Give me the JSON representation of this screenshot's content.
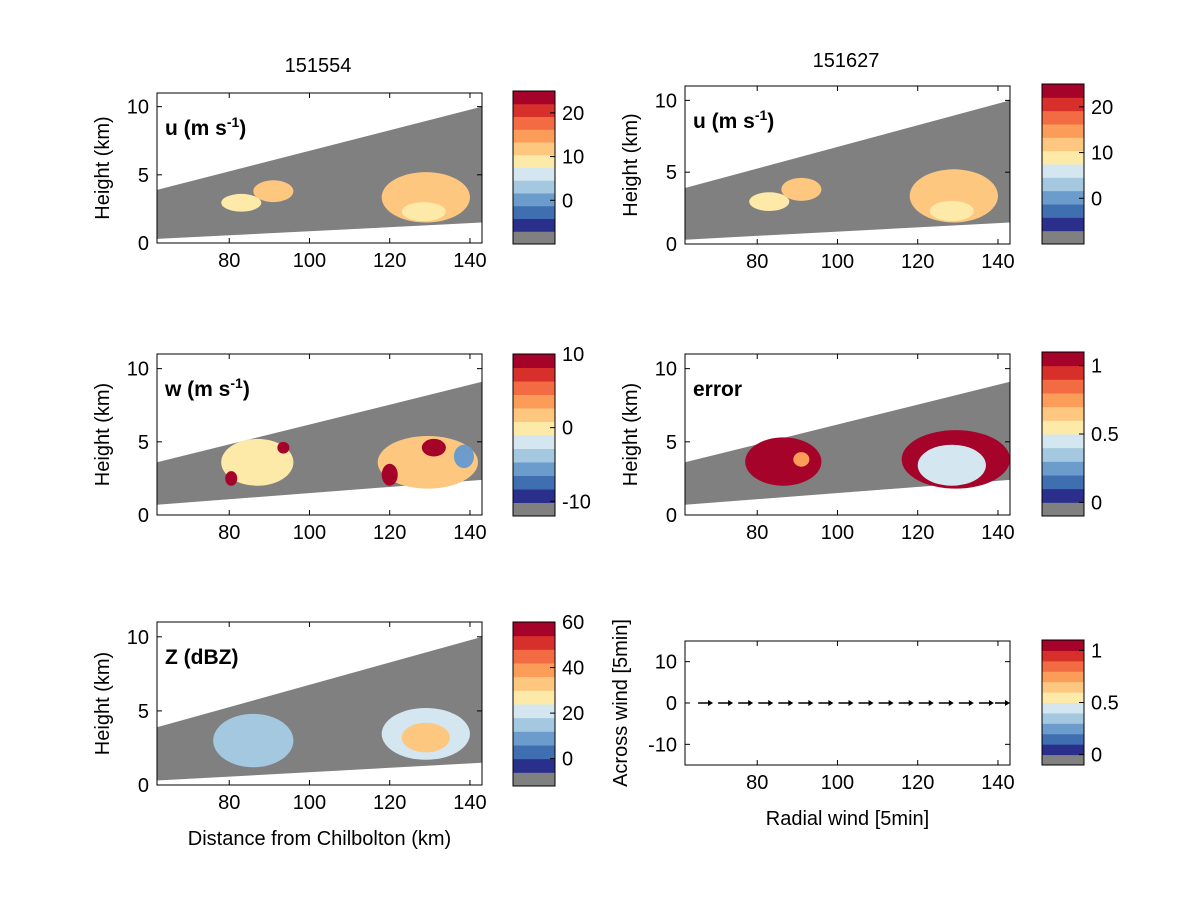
{
  "figure": {
    "col_titles": [
      "151554",
      "151627"
    ]
  },
  "colormap": [
    "#808080",
    "#2b2f8c",
    "#3f6fb0",
    "#6b9ccb",
    "#a3c8e0",
    "#d4e6f0",
    "#fde9a8",
    "#fdc780",
    "#fb9c59",
    "#f26b43",
    "#d7302b",
    "#a6032b"
  ],
  "chart_data": [
    {
      "id": "u-151554",
      "type": "heatmap",
      "title": "151554",
      "panel_label": "u (m s",
      "panel_label_sup": "-1",
      "panel_label_end": ")",
      "xlabel": "",
      "ylabel": "Height (km)",
      "xlim": [
        62,
        143
      ],
      "ylim": [
        0,
        11
      ],
      "xticks": [
        80,
        100,
        120,
        140
      ],
      "yticks": [
        0,
        5,
        10
      ],
      "beam_top": [
        [
          62,
          3.9
        ],
        [
          143,
          10.0
        ]
      ],
      "beam_bottom": [
        [
          62,
          0.3
        ],
        [
          143,
          1.5
        ]
      ],
      "colorbar": {
        "ticks": [
          0,
          10,
          20
        ],
        "range": [
          -10,
          25
        ]
      },
      "cells": [
        {
          "x": [
            78,
            88
          ],
          "y": [
            2.3,
            3.6
          ],
          "v": 7
        },
        {
          "x": [
            86,
            96
          ],
          "y": [
            3.0,
            4.6
          ],
          "v": 12
        },
        {
          "x": [
            118,
            140
          ],
          "y": [
            1.5,
            5.2
          ],
          "v": 12
        },
        {
          "x": [
            123,
            134
          ],
          "y": [
            1.6,
            3.0
          ],
          "v": 6
        }
      ]
    },
    {
      "id": "u-151627",
      "type": "heatmap",
      "title": "151627",
      "panel_label": "u (m s",
      "panel_label_sup": "-1",
      "panel_label_end": ")",
      "xlabel": "",
      "ylabel": "Height (km)",
      "xlim": [
        62,
        143
      ],
      "ylim": [
        0,
        11
      ],
      "xticks": [
        80,
        100,
        120,
        140
      ],
      "yticks": [
        0,
        5,
        10
      ],
      "beam_top": [
        [
          62,
          3.9
        ],
        [
          143,
          10.0
        ]
      ],
      "beam_bottom": [
        [
          62,
          0.3
        ],
        [
          143,
          1.5
        ]
      ],
      "colorbar": {
        "ticks": [
          0,
          10,
          20
        ],
        "range": [
          -10,
          25
        ]
      },
      "cells": [
        {
          "x": [
            78,
            88
          ],
          "y": [
            2.3,
            3.6
          ],
          "v": 7
        },
        {
          "x": [
            86,
            96
          ],
          "y": [
            3.0,
            4.6
          ],
          "v": 12
        },
        {
          "x": [
            118,
            140
          ],
          "y": [
            1.5,
            5.2
          ],
          "v": 12
        },
        {
          "x": [
            123,
            134
          ],
          "y": [
            1.6,
            3.0
          ],
          "v": 6
        }
      ]
    },
    {
      "id": "w-151554",
      "type": "heatmap",
      "panel_label": "w (m s",
      "panel_label_sup": "-1",
      "panel_label_end": ")",
      "xlabel": "",
      "ylabel": "Height (km)",
      "xlim": [
        62,
        143
      ],
      "ylim": [
        0,
        11
      ],
      "xticks": [
        80,
        100,
        120,
        140
      ],
      "yticks": [
        0,
        5,
        10
      ],
      "beam_top": [
        [
          62,
          3.6
        ],
        [
          143,
          9.1
        ]
      ],
      "beam_bottom": [
        [
          62,
          0.7
        ],
        [
          143,
          2.4
        ]
      ],
      "colorbar": {
        "ticks": [
          -10,
          0,
          10
        ],
        "range": [
          -12,
          10
        ]
      },
      "cells": [
        {
          "x": [
            78,
            96
          ],
          "y": [
            2.0,
            5.2
          ],
          "v": -2
        },
        {
          "x": [
            79,
            82
          ],
          "y": [
            2.0,
            3.0
          ],
          "v": 8
        },
        {
          "x": [
            92,
            95
          ],
          "y": [
            4.2,
            5.0
          ],
          "v": 9
        },
        {
          "x": [
            117,
            142
          ],
          "y": [
            1.8,
            5.4
          ],
          "v": 0
        },
        {
          "x": [
            118,
            122
          ],
          "y": [
            2.0,
            3.5
          ],
          "v": 8
        },
        {
          "x": [
            128,
            134
          ],
          "y": [
            4.0,
            5.2
          ],
          "v": 9
        },
        {
          "x": [
            136,
            141
          ],
          "y": [
            3.2,
            4.8
          ],
          "v": -8
        }
      ]
    },
    {
      "id": "error-151627",
      "type": "heatmap",
      "panel_label": "error",
      "xlabel": "",
      "ylabel": "Height (km)",
      "xlim": [
        62,
        143
      ],
      "ylim": [
        0,
        11
      ],
      "xticks": [
        80,
        100,
        120,
        140
      ],
      "yticks": [
        0,
        5,
        10
      ],
      "beam_top": [
        [
          62,
          3.6
        ],
        [
          143,
          9.1
        ]
      ],
      "beam_bottom": [
        [
          62,
          0.7
        ],
        [
          143,
          2.4
        ]
      ],
      "colorbar": {
        "ticks": [
          "0",
          "0.5",
          "1"
        ],
        "range": [
          -0.1,
          1.1
        ]
      },
      "cells": [
        {
          "x": [
            77,
            96
          ],
          "y": [
            2.0,
            5.3
          ],
          "v": 1.05
        },
        {
          "x": [
            89,
            93
          ],
          "y": [
            3.3,
            4.3
          ],
          "v": 0.7
        },
        {
          "x": [
            116,
            143
          ],
          "y": [
            1.8,
            5.8
          ],
          "v": 1.05
        },
        {
          "x": [
            120,
            137
          ],
          "y": [
            2.0,
            4.8
          ],
          "v": 0.35
        }
      ]
    },
    {
      "id": "Z-151554",
      "type": "heatmap",
      "panel_label": "Z (dBZ)",
      "xlabel": "Distance from Chilbolton (km)",
      "ylabel": "Height (km)",
      "xlim": [
        62,
        143
      ],
      "ylim": [
        0,
        11
      ],
      "xticks": [
        80,
        100,
        120,
        140
      ],
      "yticks": [
        0,
        5,
        10
      ],
      "beam_top": [
        [
          62,
          3.9
        ],
        [
          143,
          10.0
        ]
      ],
      "beam_bottom": [
        [
          62,
          0.3
        ],
        [
          143,
          1.5
        ]
      ],
      "colorbar": {
        "ticks": [
          0,
          20,
          40,
          60
        ],
        "range": [
          -12,
          60
        ]
      },
      "cells": [
        {
          "x": [
            76,
            96
          ],
          "y": [
            1.2,
            4.8
          ],
          "v": 10
        },
        {
          "x": [
            118,
            140
          ],
          "y": [
            1.7,
            5.2
          ],
          "v": 15
        },
        {
          "x": [
            123,
            135
          ],
          "y": [
            2.2,
            4.2
          ],
          "v": 28
        }
      ]
    },
    {
      "id": "wind-151627",
      "type": "scatter",
      "xlabel": "Radial wind [5min]",
      "ylabel": "Across wind [5min]",
      "xlim": [
        62,
        143
      ],
      "ylim": [
        -15,
        15
      ],
      "xticks": [
        80,
        100,
        120,
        140
      ],
      "yticks": [
        -10,
        0,
        10
      ],
      "colorbar": {
        "ticks": [
          "0",
          "0.5",
          "1"
        ],
        "range": [
          -0.1,
          1.1
        ]
      },
      "arrows_x": [
        67,
        72,
        77,
        82,
        87,
        92,
        97,
        102,
        107,
        112,
        117,
        122,
        127,
        132,
        137,
        141
      ],
      "arrows_y": [
        0,
        0,
        0,
        0,
        0,
        0,
        0,
        0,
        0,
        0,
        0,
        0,
        0,
        0,
        0,
        0
      ]
    }
  ]
}
